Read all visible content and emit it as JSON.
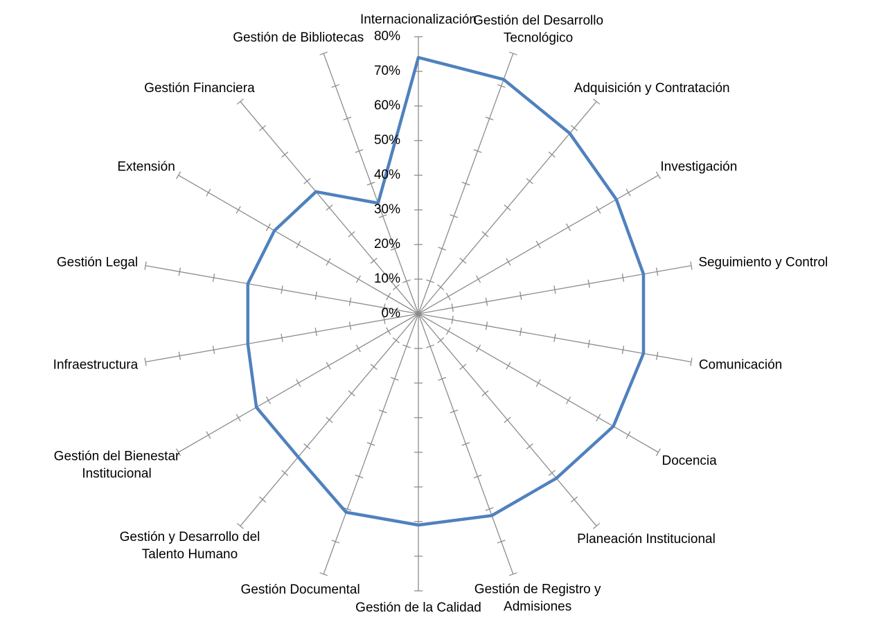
{
  "chart_data": {
    "type": "radar",
    "categories": [
      "Internacionalización",
      "Gestión del Desarrollo\nTecnológico",
      "Adquisición y Contratación",
      "Investigación",
      "Seguimiento y Control",
      "Comunicación",
      "Docencia",
      "Planeación Institucional",
      "Gestión de Registro y\nAdmisiones",
      "Gestión de la Calidad",
      "Gestión Documental",
      "Gestión y Desarrollo del\nTalento Humano",
      "Gestión del Bienestar\nInstitucional",
      "Infraestructura",
      "Gestión Legal",
      "Extensión",
      "Gestión Financiera",
      "Gestión de Bibliotecas"
    ],
    "series": [
      {
        "color": "#4f81bd",
        "values": [
          74,
          72,
          68,
          66,
          66,
          66,
          65,
          62,
          62,
          61,
          61,
          54,
          54,
          50,
          50,
          48,
          46,
          34
        ]
      }
    ],
    "ylim": [
      0,
      80
    ],
    "yticks": [
      {
        "value": 0,
        "label": "0%"
      },
      {
        "value": 10,
        "label": "10%"
      },
      {
        "value": 20,
        "label": "20%"
      },
      {
        "value": 30,
        "label": "30%"
      },
      {
        "value": 40,
        "label": "40%"
      },
      {
        "value": 50,
        "label": "50%"
      },
      {
        "value": 60,
        "label": "60%"
      },
      {
        "value": 70,
        "label": "70%"
      },
      {
        "value": 80,
        "label": "80%"
      }
    ]
  }
}
